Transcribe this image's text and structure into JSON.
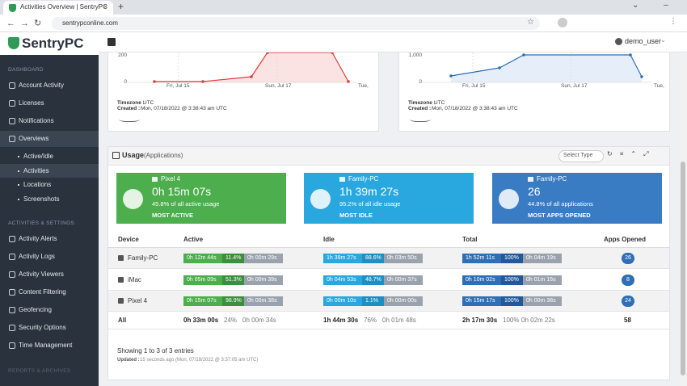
{
  "browser": {
    "tab_title": "Activities Overview | SentryPC",
    "url": "sentrypconline.com"
  },
  "sidebar": {
    "logo": "SentryPC",
    "sections": [
      {
        "heading": "DASHBOARD",
        "items": [
          "Account Activity",
          "Licenses",
          "Notifications",
          "Overviews"
        ],
        "sub_items": [
          "Active/Idle",
          "Activities",
          "Locations",
          "Screenshots"
        ]
      },
      {
        "heading": "ACTIVITIES & SETTINGS",
        "items": [
          "Activity Alerts",
          "Activity Logs",
          "Activity Viewers",
          "Content Filtering",
          "Geofencing",
          "Security Options",
          "Time Management"
        ]
      },
      {
        "heading": "REPORTS & ARCHIVES",
        "items": []
      }
    ]
  },
  "topbar": {
    "user": "demo_user"
  },
  "charts": [
    {
      "yticks": [
        "200",
        "0"
      ],
      "xticks": [
        "Fri, Jul 15",
        "Sun, Jul 17",
        "Tue,"
      ],
      "timezone_label": "Timezone :",
      "timezone": "UTC",
      "created_label": "Created :",
      "created": "Mon, 07/18/2022 @ 3:38:43 am UTC"
    },
    {
      "yticks": [
        "1,000",
        "0"
      ],
      "xticks": [
        "Fri, Jul 15",
        "Sun, Jul 17",
        "Tue,"
      ],
      "timezone_label": "Timezone :",
      "timezone": "UTC",
      "created_label": "Created :",
      "created": "Mon, 07/18/2022 @ 3:38:43 am UTC"
    }
  ],
  "usage": {
    "title": "Usage",
    "subtitle": "(Applications)",
    "select": "Select Type",
    "cards": [
      {
        "device": "Pixel 4",
        "value": "0h 15m 07s",
        "description": "45.8% of all active usage",
        "label": "MOST ACTIVE"
      },
      {
        "device": "Family-PC",
        "value": "1h 39m 27s",
        "description": "95.2% of all idle usage",
        "label": "MOST IDLE"
      },
      {
        "device": "Family-PC",
        "value": "26",
        "description": "44.8% of all applications",
        "label": "MOST APPS OPENED"
      }
    ],
    "table": {
      "columns": [
        "Device",
        "Active",
        "Idle",
        "Total",
        "Apps Opened"
      ],
      "rows": [
        [
          "Family-PC",
          [
            "0h 12m 44s",
            "11.4%",
            "0h 00m 29s"
          ],
          [
            "1h 39m 27s",
            "88.6%",
            "0h 03m 50s"
          ],
          [
            "1h 52m 11s",
            "100%",
            "0h 04m 19s"
          ],
          26
        ],
        [
          "iMac",
          [
            "0h 05m 09s",
            "51.3%",
            "0h 00m 39s"
          ],
          [
            "0h 04m 53s",
            "48.7%",
            "0h 00m 37s"
          ],
          [
            "0h 10m 02s",
            "100%",
            "0h 01m 15s"
          ],
          8
        ],
        [
          "Pixel 4",
          [
            "0h 15m 07s",
            "98.9%",
            "0h 00m 38s"
          ],
          [
            "0h 00m 10s",
            "1.1%",
            "0h 00m 00s"
          ],
          [
            "0h 15m 17s",
            "100%",
            "0h 00m 38s"
          ],
          24
        ],
        [
          "All",
          [
            "0h 33m 00s",
            "24%",
            "0h 00m 34s"
          ],
          [
            "1h 44m 30s",
            "76%",
            "0h 01m 48s"
          ],
          [
            "2h 17m 30s",
            "100%",
            "0h 02m 22s"
          ],
          58
        ]
      ]
    },
    "entries": "Showing 1 to 3 of 3 entries",
    "updated_label": "Updated :",
    "updated": "15 seconds ago (Mon, 07/18/2022 @ 3:37:05 am UTC)"
  }
}
